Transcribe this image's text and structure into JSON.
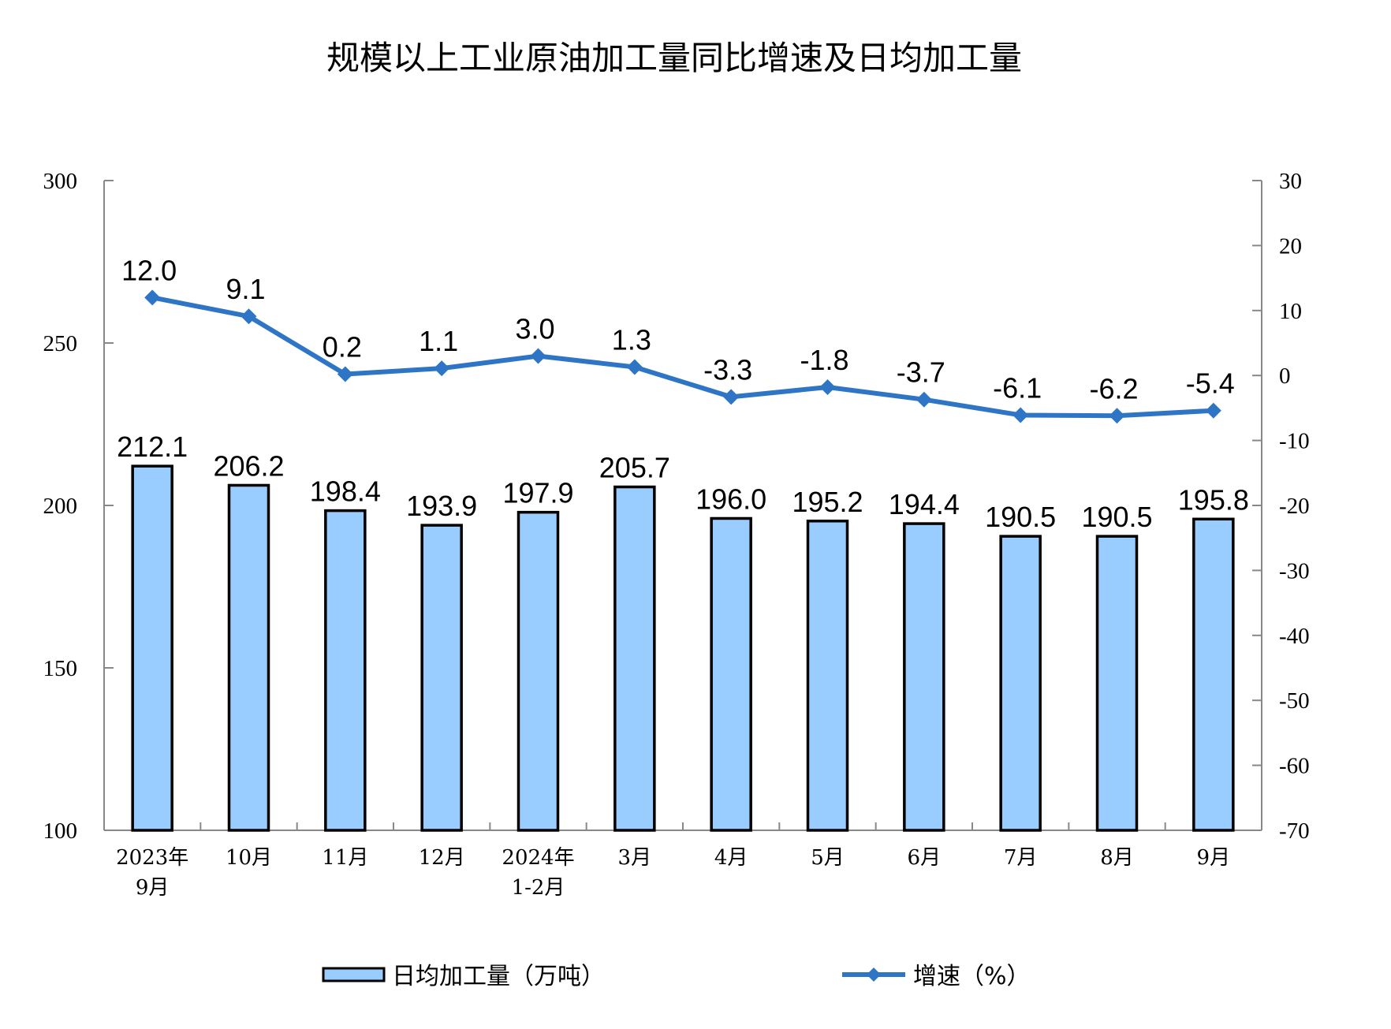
{
  "chart_data": {
    "type": "bar+line",
    "title": "规模以上工业原油加工量同比增速及日均加工量",
    "categories": [
      [
        "2023年",
        "9月"
      ],
      [
        "10月"
      ],
      [
        "11月"
      ],
      [
        "12月"
      ],
      [
        "2024年",
        "1-2月"
      ],
      [
        "3月"
      ],
      [
        "4月"
      ],
      [
        "5月"
      ],
      [
        "6月"
      ],
      [
        "7月"
      ],
      [
        "8月"
      ],
      [
        "9月"
      ]
    ],
    "series": [
      {
        "name": "日均加工量（万吨）",
        "type": "bar",
        "axis": "left",
        "color": "#99CCFF",
        "values": [
          212.1,
          206.2,
          198.4,
          193.9,
          197.9,
          205.7,
          196.0,
          195.2,
          194.4,
          190.5,
          190.5,
          195.8
        ]
      },
      {
        "name": "增速（%）",
        "type": "line",
        "axis": "right",
        "color": "#2E75C6",
        "values": [
          12.0,
          9.1,
          0.2,
          1.1,
          3.0,
          1.3,
          -3.3,
          -1.8,
          -3.7,
          -6.1,
          -6.2,
          -5.4
        ]
      }
    ],
    "y_left": {
      "range": [
        100,
        300
      ],
      "ticks": [
        100,
        150,
        200,
        250,
        300
      ]
    },
    "y_right": {
      "range": [
        -70,
        30
      ],
      "ticks": [
        -70,
        -60,
        -50,
        -40,
        -30,
        -20,
        -10,
        0,
        10,
        20,
        30
      ]
    },
    "grid": false,
    "legend_position": "bottom"
  }
}
